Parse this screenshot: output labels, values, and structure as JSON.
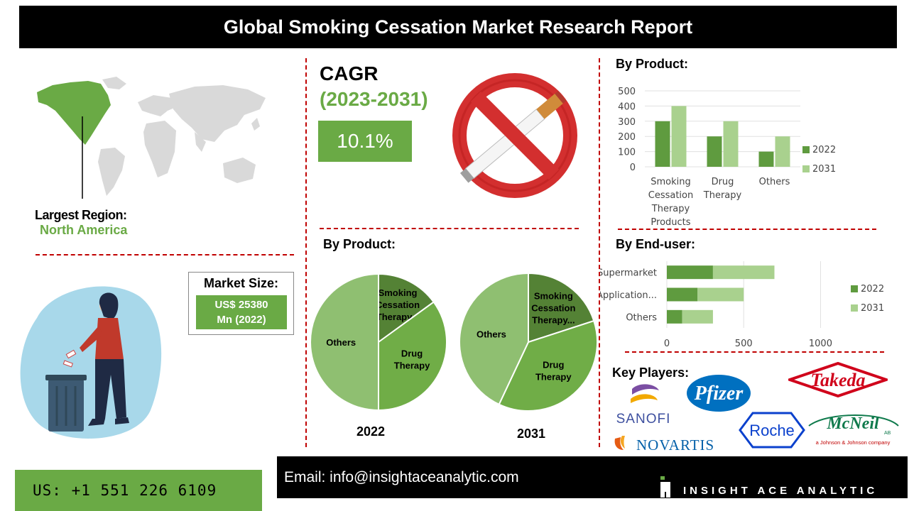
{
  "title": "Global Smoking Cessation Market Research Report",
  "region": {
    "label": "Largest Region:",
    "value": "North America"
  },
  "market_size": {
    "label": "Market Size:",
    "value_line1": "US$ 25380",
    "value_line2": "Mn (2022)"
  },
  "cagr": {
    "label": "CAGR",
    "period": "(2023-2031)",
    "value": "10.1%"
  },
  "by_product_bar": {
    "heading": "By Product:"
  },
  "by_product_pie": {
    "heading": "By Product:",
    "year_2022": "2022",
    "year_2031": "2031"
  },
  "by_end_user": {
    "heading": "By End-user:"
  },
  "key_players": {
    "heading": "Key Players:",
    "logos": [
      "SANOFI",
      "Pfizer",
      "Takeda",
      "NOVARTIS",
      "Roche",
      "McNeil",
      "AB",
      "a Johnson & Johnson company"
    ]
  },
  "footer": {
    "phone": "US: +1 551 226 6109",
    "email": "Email: info@insightaceanalytic.com",
    "brand": "INSIGHT ACE ANALYTIC"
  },
  "colors": {
    "dark_green": "#5f9b3f",
    "light_green": "#a9d18e",
    "pie_dark": "#548235",
    "pie_mid": "#70ad47",
    "pie_light": "#8fbf71",
    "accent_red": "#c00000"
  },
  "chart_data": [
    {
      "type": "bar",
      "categories": [
        "Smoking Cessation Therapy Products",
        "Drug Therapy",
        "Others"
      ],
      "category_lines": [
        [
          "Smoking",
          "Cessation",
          "Therapy",
          "Products"
        ],
        [
          "Drug",
          "Therapy"
        ],
        [
          "Others"
        ]
      ],
      "series": [
        {
          "name": "2022",
          "values": [
            300,
            200,
            100
          ]
        },
        {
          "name": "2031",
          "values": [
            400,
            300,
            200
          ]
        }
      ],
      "ylim": [
        0,
        500
      ],
      "yticks": [
        "0",
        "100",
        "200",
        "300",
        "400",
        "500"
      ],
      "grid": true,
      "legend": "right"
    },
    {
      "type": "bar",
      "orientation": "horizontal",
      "stacked": true,
      "categories": [
        "Supermarket",
        "Application...",
        "Others"
      ],
      "series": [
        {
          "name": "2022",
          "values": [
            300,
            200,
            100
          ]
        },
        {
          "name": "2031",
          "values": [
            400,
            300,
            200
          ]
        }
      ],
      "xlim": [
        0,
        1400
      ],
      "xticks": [
        "0",
        "500",
        "1000"
      ],
      "grid": true,
      "legend": "right"
    },
    {
      "type": "pie",
      "year": "2022",
      "slices": [
        {
          "label_lines": [
            "Smoking",
            "Cessation",
            "Therapy..."
          ],
          "value": 15
        },
        {
          "label_lines": [
            "Drug",
            "Therapy"
          ],
          "value": 35
        },
        {
          "label_lines": [
            "Others"
          ],
          "value": 50
        }
      ]
    },
    {
      "type": "pie",
      "year": "2031",
      "slices": [
        {
          "label_lines": [
            "Smoking",
            "Cessation",
            "Therapy..."
          ],
          "value": 20
        },
        {
          "label_lines": [
            "Drug",
            "Therapy"
          ],
          "value": 37
        },
        {
          "label_lines": [
            "Others"
          ],
          "value": 43
        }
      ]
    }
  ]
}
